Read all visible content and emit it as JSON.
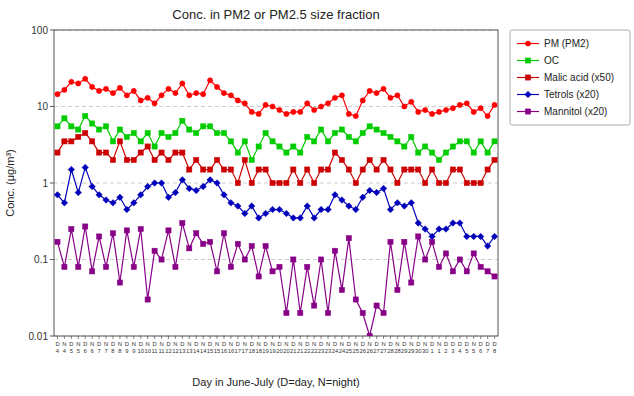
{
  "chart_data": {
    "type": "line",
    "title": "Conc. in PM2 or PM2.5 size fraction",
    "x_label": "Day in June-July (D=day, N=night)",
    "y_label": "Conc. (μg/m³)",
    "log": "y",
    "grid": true,
    "legend": "right",
    "ylim": [
      0.01,
      100
    ],
    "yticks": [
      0.01,
      0.1,
      1,
      10,
      100
    ],
    "categories": [
      "D\n4",
      "N\n4",
      "D\n5",
      "N\n5",
      "D\n6",
      "N\n6",
      "D\n7",
      "N\n7",
      "D\n8",
      "N\n8",
      "D\n9",
      "N\n9",
      "D\n10",
      "N\n10",
      "D\n11",
      "N\n11",
      "D\n12",
      "N\n12",
      "D\n13",
      "N\n13",
      "D\n14",
      "N\n14",
      "D\n15",
      "N\n15",
      "D\n16",
      "N\n16",
      "D\n17",
      "N\n17",
      "D\n18",
      "N\n18",
      "D\n19",
      "N\n19",
      "D\n20",
      "N\n20",
      "D\n21",
      "N\n21",
      "D\n22",
      "N\n22",
      "D\n23",
      "N\n23",
      "D\n24",
      "N\n24",
      "D\n25",
      "N\n25",
      "D\n26",
      "N\n26",
      "D\n27",
      "N\n27",
      "D\n28",
      "N\n28",
      "D\n29",
      "N\n29",
      "D\n30",
      "N\n30",
      "D\n1",
      "N\n1",
      "D\n2",
      "D\n3",
      "D\n4",
      "D\n5",
      "N\n5",
      "D\n6",
      "D\n7",
      "D\n8"
    ],
    "series": [
      {
        "name": "PM (PM2)",
        "color": "#ff0000",
        "marker": "circle",
        "line_style": "solid",
        "values": [
          14.5,
          16.5,
          21.0,
          20.0,
          23.0,
          18.0,
          16.0,
          17.0,
          15.0,
          17.5,
          14.0,
          16.0,
          12.0,
          13.0,
          11.0,
          14.0,
          17.0,
          15.0,
          20.0,
          14.0,
          15.0,
          14.5,
          22.0,
          18.0,
          15.0,
          14.0,
          12.0,
          11.0,
          8.5,
          8.0,
          10.5,
          10.0,
          9.0,
          8.0,
          8.5,
          8.5,
          11.0,
          9.0,
          10.0,
          11.0,
          13.0,
          14.0,
          8.0,
          7.5,
          12.0,
          16.0,
          15.0,
          17.0,
          13.0,
          14.0,
          10.0,
          11.5,
          8.5,
          9.0,
          8.0,
          8.5,
          9.0,
          9.5,
          10.5,
          11.0,
          8.5,
          9.5,
          7.5,
          10.5
        ]
      },
      {
        "name": "OC",
        "color": "#00cc00",
        "marker": "square",
        "line_style": "solid",
        "values": [
          5.5,
          7.0,
          5.5,
          5.0,
          7.5,
          6.0,
          5.0,
          5.5,
          3.5,
          5.0,
          4.0,
          4.5,
          3.5,
          4.5,
          3.0,
          4.5,
          4.0,
          4.5,
          6.5,
          5.0,
          4.5,
          5.5,
          5.5,
          4.5,
          4.5,
          3.5,
          2.5,
          3.5,
          2.0,
          3.0,
          4.5,
          3.5,
          3.0,
          2.5,
          3.0,
          2.5,
          4.0,
          3.5,
          5.0,
          3.5,
          4.5,
          5.0,
          4.0,
          3.5,
          4.5,
          5.5,
          5.0,
          4.5,
          4.0,
          3.5,
          3.0,
          4.0,
          2.5,
          3.0,
          2.5,
          2.0,
          2.5,
          3.0,
          3.5,
          3.5,
          2.5,
          3.5,
          2.5,
          3.5
        ]
      },
      {
        "name": "Malic acid (x50)",
        "color": "#cc0000",
        "marker": "square",
        "line_style": "solid",
        "values": [
          2.5,
          3.5,
          3.5,
          4.0,
          4.5,
          3.5,
          2.5,
          2.5,
          2.0,
          3.5,
          2.0,
          2.0,
          2.5,
          3.0,
          2.0,
          2.5,
          2.0,
          2.5,
          2.5,
          1.5,
          2.0,
          1.5,
          1.5,
          2.0,
          1.5,
          1.5,
          1.0,
          2.0,
          1.0,
          1.5,
          1.5,
          1.0,
          1.0,
          1.0,
          1.5,
          1.0,
          1.5,
          1.0,
          1.5,
          1.5,
          2.5,
          2.0,
          1.5,
          1.0,
          1.5,
          2.0,
          1.5,
          2.0,
          1.5,
          1.0,
          1.5,
          1.5,
          1.5,
          1.0,
          1.5,
          1.0,
          1.0,
          1.5,
          1.5,
          1.0,
          1.0,
          1.0,
          1.5,
          2.0
        ]
      },
      {
        "name": "Tetrols (x20)",
        "color": "#0000bb",
        "marker": "diamond",
        "line_style": "solid",
        "values": [
          0.7,
          0.55,
          1.5,
          0.75,
          1.6,
          0.9,
          0.7,
          0.6,
          0.55,
          0.65,
          0.45,
          0.55,
          0.7,
          0.9,
          1.0,
          1.0,
          0.65,
          0.75,
          1.1,
          0.85,
          0.8,
          0.9,
          1.1,
          1.0,
          0.7,
          0.55,
          0.5,
          0.4,
          0.5,
          0.35,
          0.4,
          0.45,
          0.45,
          0.4,
          0.35,
          0.35,
          0.5,
          0.35,
          0.45,
          0.45,
          0.7,
          0.6,
          0.5,
          0.45,
          0.65,
          0.8,
          0.75,
          0.85,
          0.45,
          0.55,
          0.5,
          0.55,
          0.3,
          0.25,
          0.2,
          0.25,
          0.25,
          0.3,
          0.3,
          0.2,
          0.2,
          0.2,
          0.15,
          0.2
        ]
      },
      {
        "name": "Mannitol (x20)",
        "color": "#880088",
        "marker": "square",
        "line_style": "solid",
        "values": [
          0.17,
          0.08,
          0.25,
          0.08,
          0.27,
          0.07,
          0.2,
          0.08,
          0.22,
          0.05,
          0.24,
          0.08,
          0.25,
          0.03,
          0.13,
          0.1,
          0.24,
          0.08,
          0.3,
          0.14,
          0.22,
          0.16,
          0.17,
          0.07,
          0.22,
          0.08,
          0.16,
          0.1,
          0.15,
          0.06,
          0.15,
          0.07,
          0.08,
          0.02,
          0.1,
          0.02,
          0.08,
          0.025,
          0.1,
          0.02,
          0.13,
          0.04,
          0.19,
          0.03,
          0.02,
          0.01,
          0.025,
          0.02,
          0.17,
          0.04,
          0.17,
          0.05,
          0.2,
          0.1,
          0.17,
          0.08,
          0.12,
          0.07,
          0.1,
          0.07,
          0.12,
          0.08,
          0.07,
          0.06
        ]
      }
    ]
  }
}
